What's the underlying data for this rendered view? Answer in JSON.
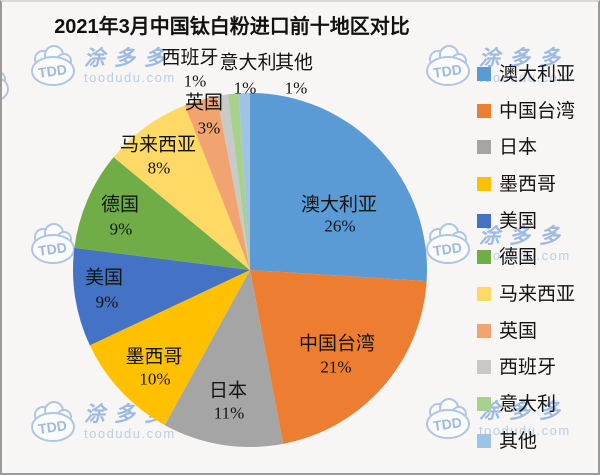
{
  "chart_data": {
    "type": "pie",
    "title": "2021年3月中国钛白粉进口前十地区对比",
    "categories": [
      "澳大利亚",
      "中国台湾",
      "日本",
      "墨西哥",
      "美国",
      "德国",
      "马来西亚",
      "英国",
      "西班牙",
      "意大利",
      "其他"
    ],
    "values": [
      26,
      21,
      11,
      10,
      9,
      9,
      8,
      3,
      1,
      1,
      1
    ],
    "unit": "%",
    "colors": [
      "#5B9BD5",
      "#ED7D31",
      "#A5A5A5",
      "#FFC000",
      "#4472C4",
      "#70AD47",
      "#FFD966",
      "#F2A470",
      "#C9C9C9",
      "#A9D18E",
      "#9DC3E6"
    ],
    "legend_position": "right",
    "slice_label_format": "category name + percent",
    "start_angle_deg": 0,
    "direction": "clockwise"
  },
  "watermark": {
    "abbr": "TDD",
    "brand": "涂多多",
    "domain": "toodudu.com"
  }
}
